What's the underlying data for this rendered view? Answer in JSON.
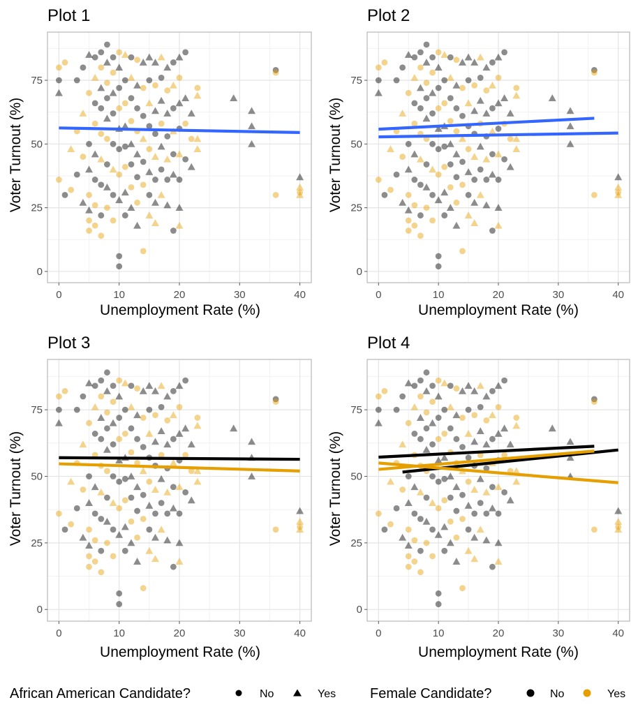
{
  "colors": {
    "no": "#000000",
    "yes": "#E69F00",
    "fit_overall": "#3366FF",
    "panel_border": "#bdbdbd",
    "grid_major": "#e4e4e4",
    "grid_minor": "#f1f1f1"
  },
  "legend": {
    "aa": {
      "title": "African American Candidate?",
      "items": [
        "No",
        "Yes"
      ]
    },
    "female": {
      "title": "Female Candidate?",
      "items": [
        "No",
        "Yes"
      ]
    }
  },
  "chart_data": [
    {
      "type": "scatter",
      "title": "Plot 1",
      "xlabel": "Unemployment Rate (%)",
      "ylabel": "Voter Turnout (%)",
      "xlim": [
        -1.9,
        41.9
      ],
      "ylim": [
        -4.4,
        93.9
      ],
      "x_ticks": [
        0,
        10,
        20,
        30,
        40
      ],
      "y_ticks": [
        0,
        25,
        50,
        75
      ],
      "grid": true,
      "points": "shared scatter of candidate races (shape = African American candidate, color = female candidate)",
      "fit_lines": [
        {
          "group": "overall",
          "color": "#3366FF",
          "x": [
            0,
            40
          ],
          "y": [
            56.3,
            54.5
          ]
        }
      ]
    },
    {
      "type": "scatter",
      "title": "Plot 2",
      "xlabel": "Unemployment Rate (%)",
      "ylabel": "Voter Turnout (%)",
      "xlim": [
        -1.9,
        41.9
      ],
      "ylim": [
        -4.4,
        93.9
      ],
      "x_ticks": [
        0,
        10,
        20,
        30,
        40
      ],
      "y_ticks": [
        0,
        25,
        50,
        75
      ],
      "grid": true,
      "fit_lines": [
        {
          "group": "African American: No",
          "color": "#3366FF",
          "x": [
            0,
            40
          ],
          "y": [
            52.8,
            54.3
          ]
        },
        {
          "group": "African American: Yes",
          "color": "#3366FF",
          "x": [
            0,
            36
          ],
          "y": [
            55.8,
            60.1
          ]
        }
      ]
    },
    {
      "type": "scatter",
      "title": "Plot 3",
      "xlabel": "Unemployment Rate (%)",
      "ylabel": "Voter Turnout (%)",
      "xlim": [
        -1.9,
        41.9
      ],
      "ylim": [
        -4.4,
        93.9
      ],
      "x_ticks": [
        0,
        10,
        20,
        30,
        40
      ],
      "y_ticks": [
        0,
        25,
        50,
        75
      ],
      "grid": true,
      "fit_lines": [
        {
          "group": "Female: No",
          "color": "#000000",
          "x": [
            0,
            40
          ],
          "y": [
            57.0,
            56.4
          ]
        },
        {
          "group": "Female: Yes",
          "color": "#E69F00",
          "x": [
            0,
            40
          ],
          "y": [
            54.7,
            52.0
          ]
        }
      ]
    },
    {
      "type": "scatter",
      "title": "Plot 4",
      "xlabel": "Unemployment Rate (%)",
      "ylabel": "Voter Turnout (%)",
      "xlim": [
        -1.9,
        41.9
      ],
      "ylim": [
        -4.4,
        93.9
      ],
      "x_ticks": [
        0,
        10,
        20,
        30,
        40
      ],
      "y_ticks": [
        0,
        25,
        50,
        75
      ],
      "grid": true,
      "fit_lines": [
        {
          "group": "Female No / AA No",
          "color": "#000000",
          "x": [
            0,
            36
          ],
          "y": [
            57.2,
            61.3
          ]
        },
        {
          "group": "Female No / AA Yes",
          "color": "#000000",
          "x": [
            4,
            40
          ],
          "y": [
            51.6,
            59.9
          ]
        },
        {
          "group": "Female Yes / AA No",
          "color": "#E69F00",
          "x": [
            0,
            40
          ],
          "y": [
            55.0,
            47.6
          ]
        },
        {
          "group": "Female Yes / AA Yes",
          "color": "#E69F00",
          "x": [
            0,
            36
          ],
          "y": [
            52.6,
            59.5
          ]
        }
      ]
    }
  ],
  "scatter_points": [
    [
      0,
      80,
      "n",
      "y"
    ],
    [
      0,
      75,
      "n",
      "n"
    ],
    [
      0,
      70,
      "t",
      "n"
    ],
    [
      0,
      36,
      "n",
      "y"
    ],
    [
      1,
      82,
      "n",
      "y"
    ],
    [
      1,
      30,
      "n",
      "n"
    ],
    [
      2,
      48,
      "t",
      "y"
    ],
    [
      2,
      32,
      "n",
      "y"
    ],
    [
      3,
      75,
      "n",
      "n"
    ],
    [
      3,
      55,
      "n",
      "y"
    ],
    [
      3,
      38,
      "n",
      "n"
    ],
    [
      4,
      80,
      "n",
      "n"
    ],
    [
      4,
      62,
      "t",
      "y"
    ],
    [
      4,
      27,
      "t",
      "n"
    ],
    [
      4,
      45,
      "n",
      "y"
    ],
    [
      5,
      85,
      "t",
      "n"
    ],
    [
      5,
      70,
      "n",
      "y"
    ],
    [
      5,
      50,
      "n",
      "n"
    ],
    [
      5,
      40,
      "t",
      "n"
    ],
    [
      5,
      30,
      "n",
      "y"
    ],
    [
      5,
      20,
      "n",
      "y"
    ],
    [
      5,
      16,
      "n",
      "y"
    ],
    [
      5,
      24,
      "t",
      "n"
    ],
    [
      6,
      84,
      "n",
      "n"
    ],
    [
      6,
      76,
      "t",
      "y"
    ],
    [
      6,
      66,
      "n",
      "n"
    ],
    [
      6,
      58,
      "n",
      "y"
    ],
    [
      6,
      46,
      "t",
      "n"
    ],
    [
      6,
      36,
      "n",
      "n"
    ],
    [
      6,
      26,
      "n",
      "y"
    ],
    [
      6,
      18,
      "n",
      "y"
    ],
    [
      7,
      86,
      "n",
      "n"
    ],
    [
      7,
      80,
      "n",
      "y"
    ],
    [
      7,
      72,
      "t",
      "n"
    ],
    [
      7,
      64,
      "n",
      "n"
    ],
    [
      7,
      54,
      "n",
      "y"
    ],
    [
      7,
      44,
      "t",
      "y"
    ],
    [
      7,
      34,
      "n",
      "n"
    ],
    [
      7,
      22,
      "n",
      "n"
    ],
    [
      7,
      14,
      "n",
      "y"
    ],
    [
      8,
      89,
      "n",
      "n"
    ],
    [
      8,
      82,
      "t",
      "n"
    ],
    [
      8,
      74,
      "n",
      "y"
    ],
    [
      8,
      68,
      "n",
      "n"
    ],
    [
      8,
      60,
      "t",
      "n"
    ],
    [
      8,
      52,
      "n",
      "y"
    ],
    [
      8,
      42,
      "n",
      "n"
    ],
    [
      8,
      33,
      "t",
      "n"
    ],
    [
      8,
      25,
      "n",
      "y"
    ],
    [
      9,
      84,
      "n",
      "n"
    ],
    [
      9,
      78,
      "n",
      "y"
    ],
    [
      9,
      70,
      "t",
      "n"
    ],
    [
      9,
      62,
      "n",
      "n"
    ],
    [
      9,
      50,
      "n",
      "n"
    ],
    [
      9,
      40,
      "t",
      "y"
    ],
    [
      9,
      30,
      "n",
      "n"
    ],
    [
      9,
      20,
      "n",
      "y"
    ],
    [
      10,
      86,
      "n",
      "y"
    ],
    [
      10,
      80,
      "t",
      "n"
    ],
    [
      10,
      72,
      "n",
      "n"
    ],
    [
      10,
      64,
      "n",
      "y"
    ],
    [
      10,
      56,
      "t",
      "n"
    ],
    [
      10,
      48,
      "n",
      "n"
    ],
    [
      10,
      38,
      "n",
      "y"
    ],
    [
      10,
      28,
      "t",
      "n"
    ],
    [
      10,
      6,
      "n",
      "n"
    ],
    [
      10,
      2,
      "n",
      "n"
    ],
    [
      11,
      85,
      "t",
      "y"
    ],
    [
      11,
      75,
      "n",
      "n"
    ],
    [
      11,
      66,
      "n",
      "y"
    ],
    [
      11,
      57,
      "t",
      "n"
    ],
    [
      11,
      49,
      "n",
      "n"
    ],
    [
      11,
      41,
      "n",
      "y"
    ],
    [
      11,
      31,
      "t",
      "n"
    ],
    [
      11,
      22,
      "n",
      "n"
    ],
    [
      12,
      84,
      "n",
      "n"
    ],
    [
      12,
      76,
      "t",
      "y"
    ],
    [
      12,
      68,
      "n",
      "n"
    ],
    [
      12,
      59,
      "n",
      "y"
    ],
    [
      12,
      50,
      "t",
      "n"
    ],
    [
      12,
      42,
      "n",
      "n"
    ],
    [
      12,
      33,
      "n",
      "y"
    ],
    [
      12,
      25,
      "t",
      "n"
    ],
    [
      13,
      83,
      "n",
      "y"
    ],
    [
      13,
      73,
      "t",
      "n"
    ],
    [
      13,
      64,
      "n",
      "n"
    ],
    [
      13,
      55,
      "n",
      "y"
    ],
    [
      13,
      46,
      "t",
      "n"
    ],
    [
      13,
      37,
      "n",
      "n"
    ],
    [
      13,
      27,
      "n",
      "y"
    ],
    [
      13,
      18,
      "t",
      "n"
    ],
    [
      14,
      82,
      "t",
      "n"
    ],
    [
      14,
      72,
      "n",
      "y"
    ],
    [
      14,
      61,
      "n",
      "n"
    ],
    [
      14,
      52,
      "t",
      "y"
    ],
    [
      14,
      43,
      "n",
      "n"
    ],
    [
      14,
      34,
      "n",
      "y"
    ],
    [
      14,
      8,
      "n",
      "y"
    ],
    [
      15,
      84,
      "t",
      "n"
    ],
    [
      15,
      75,
      "n",
      "n"
    ],
    [
      15,
      66,
      "t",
      "y"
    ],
    [
      15,
      57,
      "n",
      "n"
    ],
    [
      15,
      48,
      "n",
      "y"
    ],
    [
      15,
      39,
      "t",
      "n"
    ],
    [
      15,
      30,
      "n",
      "n"
    ],
    [
      15,
      22,
      "t",
      "y"
    ],
    [
      16,
      82,
      "t",
      "n"
    ],
    [
      16,
      73,
      "n",
      "y"
    ],
    [
      16,
      63,
      "t",
      "n"
    ],
    [
      16,
      54,
      "n",
      "n"
    ],
    [
      16,
      45,
      "t",
      "y"
    ],
    [
      16,
      36,
      "n",
      "n"
    ],
    [
      16,
      27,
      "t",
      "n"
    ],
    [
      16,
      19,
      "t",
      "y"
    ],
    [
      17,
      84,
      "t",
      "y"
    ],
    [
      17,
      76,
      "n",
      "n"
    ],
    [
      17,
      67,
      "t",
      "n"
    ],
    [
      17,
      58,
      "n",
      "y"
    ],
    [
      17,
      49,
      "t",
      "n"
    ],
    [
      17,
      40,
      "n",
      "n"
    ],
    [
      17,
      30,
      "t",
      "y"
    ],
    [
      18,
      80,
      "t",
      "n"
    ],
    [
      18,
      71,
      "n",
      "y"
    ],
    [
      18,
      62,
      "t",
      "n"
    ],
    [
      18,
      53,
      "n",
      "n"
    ],
    [
      18,
      44,
      "t",
      "y"
    ],
    [
      18,
      36,
      "n",
      "n"
    ],
    [
      18,
      26,
      "t",
      "n"
    ],
    [
      19,
      82,
      "n",
      "n"
    ],
    [
      19,
      73,
      "t",
      "y"
    ],
    [
      19,
      64,
      "n",
      "n"
    ],
    [
      19,
      55,
      "t",
      "y"
    ],
    [
      19,
      46,
      "n",
      "n"
    ],
    [
      19,
      38,
      "t",
      "n"
    ],
    [
      19,
      16,
      "n",
      "n"
    ],
    [
      20,
      84,
      "t",
      "n"
    ],
    [
      20,
      76,
      "n",
      "y"
    ],
    [
      20,
      66,
      "t",
      "n"
    ],
    [
      20,
      56,
      "n",
      "n"
    ],
    [
      20,
      46,
      "t",
      "y"
    ],
    [
      20,
      36,
      "n",
      "n"
    ],
    [
      20,
      25,
      "t",
      "n"
    ],
    [
      20,
      18,
      "t",
      "y"
    ],
    [
      21,
      86,
      "n",
      "n"
    ],
    [
      21,
      68,
      "t",
      "n"
    ],
    [
      21,
      58,
      "n",
      "y"
    ],
    [
      21,
      44,
      "n",
      "n"
    ],
    [
      22,
      62,
      "t",
      "n"
    ],
    [
      22,
      52,
      "n",
      "y"
    ],
    [
      22,
      41,
      "t",
      "n"
    ],
    [
      23,
      72,
      "n",
      "y"
    ],
    [
      23,
      52,
      "t",
      "y"
    ],
    [
      23,
      48,
      "t",
      "y"
    ],
    [
      23,
      69,
      "t",
      "y"
    ],
    [
      29,
      68,
      "t",
      "n"
    ],
    [
      32,
      63,
      "t",
      "n"
    ],
    [
      32,
      57,
      "t",
      "n"
    ],
    [
      32,
      50,
      "t",
      "n"
    ],
    [
      36,
      79,
      "n",
      "n"
    ],
    [
      36,
      78,
      "n",
      "y"
    ],
    [
      36,
      30,
      "n",
      "y"
    ],
    [
      40,
      37,
      "t",
      "n"
    ],
    [
      40,
      33,
      "t",
      "y"
    ],
    [
      40,
      31,
      "n",
      "y"
    ],
    [
      40,
      30,
      "t",
      "y"
    ]
  ]
}
